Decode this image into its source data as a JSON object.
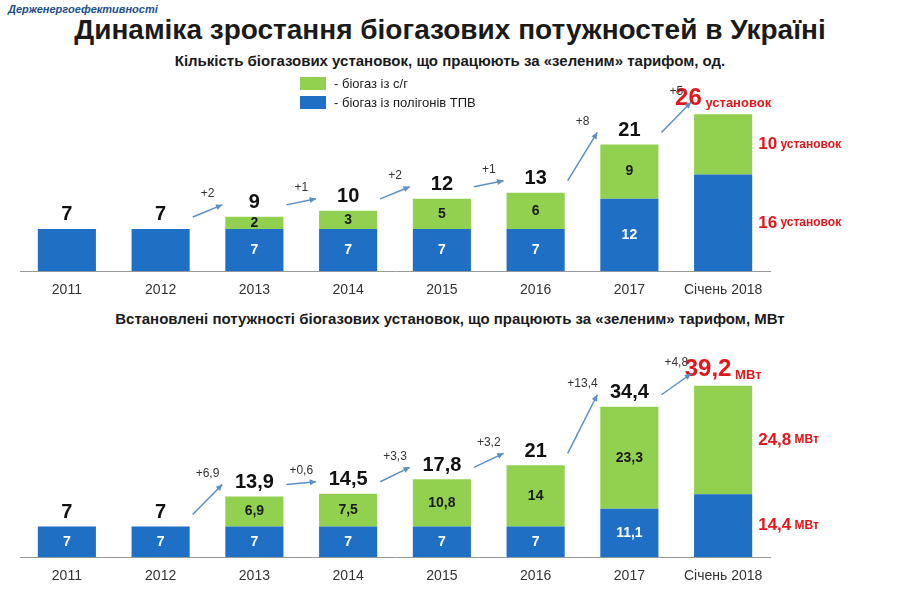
{
  "header": {
    "logo": "Держенергоефективності",
    "title": "Динаміка зростання біогазових потужностей в Україні"
  },
  "chart_data": [
    {
      "type": "bar",
      "title": "Кількість біогазових установок, що працюють за «зеленим» тарифом, од.",
      "categories": [
        "2011",
        "2012",
        "2013",
        "2014",
        "2015",
        "2016",
        "2017",
        "Січень 2018"
      ],
      "series": [
        {
          "name": "- біогаз із полігонів ТПВ",
          "color": "#1f6fc5",
          "values": [
            7,
            7,
            7,
            7,
            7,
            7,
            12,
            16
          ],
          "value_labels": [
            null,
            null,
            "7",
            "7",
            "7",
            "7",
            "12",
            "16 установок"
          ]
        },
        {
          "name": "- біогаз із с/г",
          "color": "#92d050",
          "values": [
            null,
            null,
            2,
            3,
            5,
            6,
            9,
            10
          ],
          "value_labels": [
            null,
            null,
            "2",
            "3",
            "5",
            "6",
            "9",
            "10 установок"
          ]
        }
      ],
      "totals": [
        7,
        7,
        9,
        10,
        12,
        13,
        21,
        26
      ],
      "total_labels": [
        "7",
        "7",
        "9",
        "10",
        "12",
        "13",
        "21",
        "26 установок"
      ],
      "changes": [
        null,
        null,
        2,
        1,
        2,
        1,
        8,
        5
      ],
      "change_labels": [
        null,
        null,
        "+2",
        "+1",
        "+2",
        "+1",
        "+8",
        "+5"
      ],
      "stacked": true,
      "data_labels": true,
      "legend": "top",
      "grid": false,
      "tick_labels": "x",
      "ylim": [
        0,
        32
      ]
    },
    {
      "type": "bar",
      "title": "Встановлені потужності біогазових установок, що працюють за «зеленим» тарифом, МВт",
      "categories": [
        "2011",
        "2012",
        "2013",
        "2014",
        "2015",
        "2016",
        "2017",
        "Січень 2018"
      ],
      "series": [
        {
          "name": "- біогаз із полігонів ТПВ",
          "color": "#1f6fc5",
          "values": [
            7,
            7,
            7,
            7,
            7,
            7,
            11.1,
            14.4
          ],
          "value_labels": [
            "7",
            "7",
            "7",
            "7",
            "7",
            "7",
            "11,1",
            "14,4 МВт"
          ]
        },
        {
          "name": "- біогаз із с/г",
          "color": "#92d050",
          "values": [
            null,
            null,
            6.9,
            7.5,
            10.8,
            14,
            23.3,
            24.8
          ],
          "value_labels": [
            null,
            null,
            "6,9",
            "7,5",
            "10,8",
            "14",
            "23,3",
            "24,8 МВт"
          ]
        }
      ],
      "totals": [
        7,
        7,
        13.9,
        14.5,
        17.8,
        21,
        34.4,
        39.2
      ],
      "total_labels": [
        "7",
        "7",
        "13,9",
        "14,5",
        "17,8",
        "21",
        "34,4",
        "39,2 МВт"
      ],
      "changes": [
        null,
        null,
        6.9,
        0.6,
        3.3,
        3.2,
        13.4,
        4.8
      ],
      "change_labels": [
        null,
        null,
        "+6,9",
        "+0,6",
        "+3,3",
        "+3,2",
        "+13,4",
        "+4,8"
      ],
      "stacked": true,
      "data_labels": true,
      "grid": false,
      "tick_labels": "x",
      "ylim": [
        0,
        46
      ]
    }
  ]
}
